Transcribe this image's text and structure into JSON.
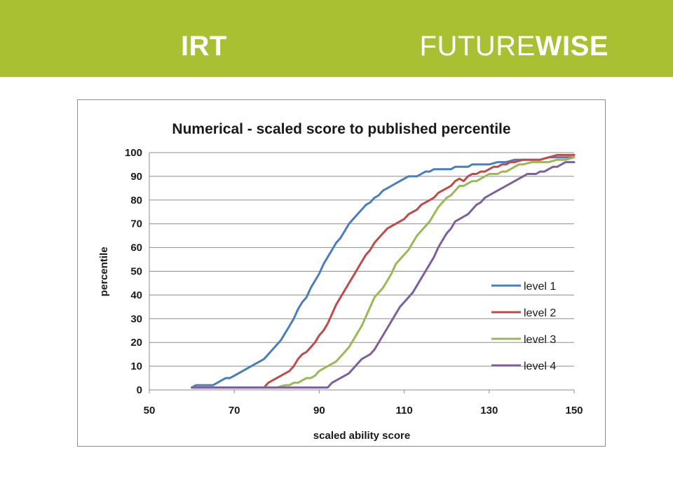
{
  "header": {
    "left_title": "IRT",
    "brand_regular": "FUTURE",
    "brand_bold": "WISE",
    "bg_color": "#a8c031"
  },
  "chart_data": {
    "type": "line",
    "title": "Numerical - scaled score to published percentile",
    "xlabel": "scaled ability score",
    "ylabel": "percentile",
    "xlim": [
      50,
      150
    ],
    "ylim": [
      0,
      100
    ],
    "xticks": [
      50,
      70,
      90,
      110,
      130,
      150
    ],
    "yticks": [
      0,
      10,
      20,
      30,
      40,
      50,
      60,
      70,
      80,
      90,
      100
    ],
    "grid": "horizontal",
    "legend_position": "bottom-right",
    "series": [
      {
        "name": "level 1",
        "color": "#4a7ebb",
        "points": [
          [
            60,
            1
          ],
          [
            61,
            2
          ],
          [
            62,
            2
          ],
          [
            63,
            2
          ],
          [
            64,
            2
          ],
          [
            65,
            2
          ],
          [
            66,
            3
          ],
          [
            67,
            4
          ],
          [
            68,
            5
          ],
          [
            69,
            5
          ],
          [
            70,
            6
          ],
          [
            72,
            8
          ],
          [
            74,
            10
          ],
          [
            76,
            12
          ],
          [
            77,
            13
          ],
          [
            78,
            15
          ],
          [
            80,
            19
          ],
          [
            81,
            21
          ],
          [
            82,
            24
          ],
          [
            83,
            27
          ],
          [
            84,
            30
          ],
          [
            85,
            34
          ],
          [
            86,
            37
          ],
          [
            87,
            39
          ],
          [
            88,
            43
          ],
          [
            89,
            46
          ],
          [
            90,
            49
          ],
          [
            91,
            53
          ],
          [
            92,
            56
          ],
          [
            93,
            59
          ],
          [
            94,
            62
          ],
          [
            95,
            64
          ],
          [
            96,
            67
          ],
          [
            97,
            70
          ],
          [
            98,
            72
          ],
          [
            99,
            74
          ],
          [
            100,
            76
          ],
          [
            101,
            78
          ],
          [
            102,
            79
          ],
          [
            103,
            81
          ],
          [
            104,
            82
          ],
          [
            105,
            84
          ],
          [
            106,
            85
          ],
          [
            107,
            86
          ],
          [
            108,
            87
          ],
          [
            109,
            88
          ],
          [
            110,
            89
          ],
          [
            111,
            90
          ],
          [
            112,
            90
          ],
          [
            113,
            90
          ],
          [
            114,
            91
          ],
          [
            115,
            92
          ],
          [
            116,
            92
          ],
          [
            117,
            93
          ],
          [
            118,
            93
          ],
          [
            120,
            93
          ],
          [
            121,
            93
          ],
          [
            122,
            94
          ],
          [
            124,
            94
          ],
          [
            125,
            94
          ],
          [
            126,
            95
          ],
          [
            128,
            95
          ],
          [
            130,
            95
          ],
          [
            132,
            96
          ],
          [
            134,
            96
          ],
          [
            136,
            97
          ],
          [
            138,
            97
          ],
          [
            140,
            97
          ],
          [
            142,
            97
          ],
          [
            144,
            98
          ],
          [
            146,
            98
          ],
          [
            148,
            98
          ],
          [
            150,
            98
          ]
        ]
      },
      {
        "name": "level 2",
        "color": "#be4b48",
        "points": [
          [
            60,
            1
          ],
          [
            70,
            1
          ],
          [
            77,
            1
          ],
          [
            78,
            3
          ],
          [
            79,
            4
          ],
          [
            80,
            5
          ],
          [
            81,
            6
          ],
          [
            82,
            7
          ],
          [
            83,
            8
          ],
          [
            84,
            10
          ],
          [
            85,
            13
          ],
          [
            86,
            15
          ],
          [
            87,
            16
          ],
          [
            88,
            18
          ],
          [
            89,
            20
          ],
          [
            90,
            23
          ],
          [
            91,
            25
          ],
          [
            92,
            28
          ],
          [
            93,
            32
          ],
          [
            94,
            36
          ],
          [
            95,
            39
          ],
          [
            96,
            42
          ],
          [
            97,
            45
          ],
          [
            98,
            48
          ],
          [
            99,
            51
          ],
          [
            100,
            54
          ],
          [
            101,
            57
          ],
          [
            102,
            59
          ],
          [
            103,
            62
          ],
          [
            104,
            64
          ],
          [
            105,
            66
          ],
          [
            106,
            68
          ],
          [
            107,
            69
          ],
          [
            108,
            70
          ],
          [
            109,
            71
          ],
          [
            110,
            72
          ],
          [
            111,
            74
          ],
          [
            112,
            75
          ],
          [
            113,
            76
          ],
          [
            114,
            78
          ],
          [
            115,
            79
          ],
          [
            116,
            80
          ],
          [
            117,
            81
          ],
          [
            118,
            83
          ],
          [
            119,
            84
          ],
          [
            120,
            85
          ],
          [
            121,
            86
          ],
          [
            122,
            88
          ],
          [
            123,
            89
          ],
          [
            124,
            88
          ],
          [
            125,
            90
          ],
          [
            126,
            91
          ],
          [
            127,
            91
          ],
          [
            128,
            92
          ],
          [
            129,
            92
          ],
          [
            130,
            93
          ],
          [
            131,
            94
          ],
          [
            132,
            94
          ],
          [
            133,
            95
          ],
          [
            134,
            95
          ],
          [
            135,
            96
          ],
          [
            136,
            96
          ],
          [
            138,
            97
          ],
          [
            140,
            97
          ],
          [
            142,
            97
          ],
          [
            144,
            98
          ],
          [
            146,
            99
          ],
          [
            148,
            99
          ],
          [
            150,
            99
          ]
        ]
      },
      {
        "name": "level 3",
        "color": "#98b954",
        "points": [
          [
            60,
            1
          ],
          [
            70,
            1
          ],
          [
            80,
            1
          ],
          [
            82,
            2
          ],
          [
            83,
            2
          ],
          [
            84,
            3
          ],
          [
            85,
            3
          ],
          [
            86,
            4
          ],
          [
            87,
            5
          ],
          [
            88,
            5
          ],
          [
            89,
            6
          ],
          [
            90,
            8
          ],
          [
            91,
            9
          ],
          [
            92,
            10
          ],
          [
            93,
            11
          ],
          [
            94,
            12
          ],
          [
            95,
            14
          ],
          [
            96,
            16
          ],
          [
            97,
            18
          ],
          [
            98,
            21
          ],
          [
            99,
            24
          ],
          [
            100,
            27
          ],
          [
            101,
            31
          ],
          [
            102,
            35
          ],
          [
            103,
            39
          ],
          [
            104,
            41
          ],
          [
            105,
            43
          ],
          [
            106,
            46
          ],
          [
            107,
            49
          ],
          [
            108,
            53
          ],
          [
            109,
            55
          ],
          [
            110,
            57
          ],
          [
            111,
            59
          ],
          [
            112,
            62
          ],
          [
            113,
            65
          ],
          [
            114,
            67
          ],
          [
            115,
            69
          ],
          [
            116,
            71
          ],
          [
            117,
            74
          ],
          [
            118,
            77
          ],
          [
            119,
            79
          ],
          [
            120,
            81
          ],
          [
            121,
            82
          ],
          [
            122,
            84
          ],
          [
            123,
            86
          ],
          [
            124,
            86
          ],
          [
            125,
            87
          ],
          [
            126,
            88
          ],
          [
            127,
            88
          ],
          [
            128,
            89
          ],
          [
            129,
            90
          ],
          [
            130,
            91
          ],
          [
            131,
            91
          ],
          [
            132,
            91
          ],
          [
            133,
            92
          ],
          [
            134,
            92
          ],
          [
            135,
            93
          ],
          [
            136,
            94
          ],
          [
            137,
            95
          ],
          [
            138,
            95
          ],
          [
            140,
            96
          ],
          [
            142,
            96
          ],
          [
            144,
            96
          ],
          [
            146,
            97
          ],
          [
            148,
            97
          ],
          [
            150,
            98
          ]
        ]
      },
      {
        "name": "level 4",
        "color": "#7d5fa0",
        "points": [
          [
            60,
            1
          ],
          [
            70,
            1
          ],
          [
            80,
            1
          ],
          [
            90,
            1
          ],
          [
            91,
            1
          ],
          [
            92,
            1
          ],
          [
            93,
            3
          ],
          [
            94,
            4
          ],
          [
            95,
            5
          ],
          [
            96,
            6
          ],
          [
            97,
            7
          ],
          [
            98,
            9
          ],
          [
            99,
            11
          ],
          [
            100,
            13
          ],
          [
            101,
            14
          ],
          [
            102,
            15
          ],
          [
            103,
            17
          ],
          [
            104,
            20
          ],
          [
            105,
            23
          ],
          [
            106,
            26
          ],
          [
            107,
            29
          ],
          [
            108,
            32
          ],
          [
            109,
            35
          ],
          [
            110,
            37
          ],
          [
            111,
            39
          ],
          [
            112,
            41
          ],
          [
            113,
            44
          ],
          [
            114,
            47
          ],
          [
            115,
            50
          ],
          [
            116,
            53
          ],
          [
            117,
            56
          ],
          [
            118,
            60
          ],
          [
            119,
            63
          ],
          [
            120,
            66
          ],
          [
            121,
            68
          ],
          [
            122,
            71
          ],
          [
            123,
            72
          ],
          [
            124,
            73
          ],
          [
            125,
            74
          ],
          [
            126,
            76
          ],
          [
            127,
            78
          ],
          [
            128,
            79
          ],
          [
            129,
            81
          ],
          [
            130,
            82
          ],
          [
            132,
            84
          ],
          [
            134,
            86
          ],
          [
            136,
            88
          ],
          [
            138,
            90
          ],
          [
            139,
            91
          ],
          [
            140,
            91
          ],
          [
            141,
            91
          ],
          [
            142,
            92
          ],
          [
            143,
            92
          ],
          [
            144,
            93
          ],
          [
            145,
            94
          ],
          [
            146,
            94
          ],
          [
            147,
            95
          ],
          [
            148,
            96
          ],
          [
            149,
            96
          ],
          [
            150,
            96
          ]
        ]
      }
    ]
  }
}
